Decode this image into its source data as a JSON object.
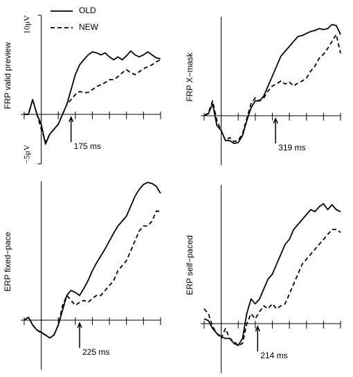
{
  "chart_data": [
    {
      "type": "line",
      "y_label": "FRP valid preview",
      "legend": "upper left",
      "x": [
        -100,
        -75,
        -50,
        -25,
        0,
        25,
        50,
        75,
        100,
        125,
        150,
        175,
        200,
        225,
        250,
        275,
        300,
        325,
        350,
        375,
        400,
        425,
        450,
        475,
        500,
        525,
        550,
        575,
        600,
        625,
        650,
        675,
        700
      ],
      "xlim": [
        -120,
        700
      ],
      "xticks": [
        -100,
        0,
        100,
        200,
        300,
        400,
        500,
        600,
        700
      ],
      "ylim": [
        -5,
        10
      ],
      "yticks": [
        {
          "value": 10,
          "label": "10μV"
        },
        {
          "value": -5,
          "label": "−5μV"
        }
      ],
      "series": [
        {
          "name": "OLD",
          "color": "#000000",
          "line_style": "solid",
          "values": [
            0,
            0,
            1.5,
            0,
            -1,
            -3,
            -2,
            -1.5,
            -1,
            0,
            1,
            2.5,
            4,
            5,
            5.5,
            6,
            6.3,
            6.2,
            6,
            6.2,
            5.8,
            5.5,
            5.8,
            5.5,
            5.9,
            6.4,
            6,
            5.8,
            6,
            6.3,
            6,
            5.7,
            5.6
          ]
        },
        {
          "name": "NEW",
          "color": "#000000",
          "line_style": "dashed",
          "values": [
            0,
            0,
            1.5,
            0,
            -1.5,
            -2.8,
            -2,
            -1.5,
            -1,
            0,
            1,
            1.5,
            2,
            2.3,
            2.2,
            2.2,
            2.5,
            2.8,
            3,
            3.2,
            3.5,
            3.5,
            3.8,
            4.2,
            4.5,
            4.2,
            4,
            4.3,
            4.6,
            4.8,
            5,
            5.3,
            5.5
          ]
        }
      ],
      "annotations": [
        {
          "text": "175 ms",
          "x": 175
        }
      ]
    },
    {
      "type": "line",
      "y_label": "FRP X−mask",
      "x": [
        -100,
        -75,
        -50,
        -25,
        0,
        25,
        50,
        75,
        100,
        125,
        150,
        175,
        200,
        225,
        250,
        275,
        300,
        325,
        350,
        375,
        400,
        425,
        450,
        475,
        500,
        525,
        550,
        575,
        600,
        625,
        650,
        675,
        700
      ],
      "xlim": [
        -120,
        700
      ],
      "xticks": [
        -100,
        0,
        100,
        200,
        300,
        400,
        500,
        600,
        700
      ],
      "ylim": [
        -5,
        10
      ],
      "series": [
        {
          "name": "OLD",
          "color": "#000000",
          "line_style": "solid",
          "values": [
            0,
            0.2,
            1.2,
            -1,
            -1.5,
            -2.5,
            -2.5,
            -2.8,
            -2.7,
            -2,
            -0.5,
            0.8,
            1.5,
            1.5,
            2,
            3,
            4,
            5,
            6,
            6.5,
            7,
            7.5,
            8,
            8.1,
            8.3,
            8.5,
            8.6,
            8.8,
            8.7,
            8.8,
            9.2,
            9.1,
            8.2
          ]
        },
        {
          "name": "NEW",
          "color": "#000000",
          "line_style": "dashed",
          "values": [
            0,
            0.3,
            1.5,
            -0.5,
            -1.5,
            -2.5,
            -2.2,
            -2.6,
            -2.5,
            -1.8,
            -0.3,
            1.2,
            1.8,
            1.5,
            1.8,
            2.5,
            3,
            3.2,
            3.5,
            3.2,
            3.4,
            3,
            3.3,
            3.5,
            3.8,
            4.5,
            5,
            5.8,
            6.2,
            6.8,
            7.5,
            8.2,
            6.3
          ]
        }
      ],
      "annotations": [
        {
          "text": "319 ms",
          "x": 319
        }
      ]
    },
    {
      "type": "line",
      "y_label": "ERP fixed−pace",
      "x": [
        -100,
        -75,
        -50,
        -25,
        0,
        25,
        50,
        75,
        100,
        125,
        150,
        175,
        200,
        225,
        250,
        275,
        300,
        325,
        350,
        375,
        400,
        425,
        450,
        475,
        500,
        525,
        550,
        575,
        600,
        625,
        650,
        675,
        700
      ],
      "xlim": [
        -120,
        700
      ],
      "xticks": [
        -100,
        0,
        100,
        200,
        300,
        400,
        500,
        600,
        700
      ],
      "ylim": [
        -5,
        14
      ],
      "series": [
        {
          "name": "OLD",
          "color": "#000000",
          "line_style": "solid",
          "values": [
            0,
            0.3,
            -0.5,
            -1,
            -1.2,
            -1.5,
            -1.8,
            -1.5,
            -0.5,
            1,
            2.5,
            3,
            2.8,
            2.5,
            3.2,
            4,
            5,
            5.8,
            6.5,
            7.2,
            8,
            8.8,
            9.5,
            10,
            10.5,
            11.5,
            12.5,
            13.2,
            13.7,
            13.9,
            13.8,
            13.5,
            12.8
          ]
        },
        {
          "name": "NEW",
          "color": "#000000",
          "line_style": "dashed",
          "values": [
            0,
            0.3,
            -0.5,
            -1,
            -1.3,
            -1.5,
            -1.8,
            -1.5,
            -0.5,
            1.5,
            2.5,
            2,
            1.5,
            1.8,
            2,
            1.8,
            2.2,
            2.5,
            2.5,
            3,
            3.5,
            4,
            5,
            5.5,
            6,
            7,
            8,
            9,
            9.5,
            9.5,
            10,
            11,
            11
          ]
        }
      ],
      "annotations": [
        {
          "text": "225 ms",
          "x": 225
        }
      ]
    },
    {
      "type": "line",
      "y_label": "ERP self−paced",
      "x": [
        -100,
        -75,
        -50,
        -25,
        0,
        25,
        50,
        75,
        100,
        125,
        150,
        175,
        200,
        225,
        250,
        275,
        300,
        325,
        350,
        375,
        400,
        425,
        450,
        475,
        500,
        525,
        550,
        575,
        600,
        625,
        650,
        675,
        700
      ],
      "xlim": [
        -120,
        700
      ],
      "xticks": [
        -100,
        0,
        100,
        200,
        300,
        400,
        500,
        600,
        700
      ],
      "ylim": [
        -5,
        14
      ],
      "series": [
        {
          "name": "OLD",
          "color": "#000000",
          "line_style": "solid",
          "values": [
            0.5,
            0.3,
            -0.5,
            -1,
            -1.3,
            -1.5,
            -1.5,
            -2,
            -2.2,
            -1.5,
            1,
            2.5,
            2,
            2.5,
            3.5,
            4.5,
            5,
            6,
            7,
            8,
            8.5,
            9.5,
            10,
            10.5,
            11,
            11.5,
            11.3,
            11.8,
            12.1,
            11.5,
            12,
            11.5,
            11.3
          ]
        },
        {
          "name": "NEW",
          "color": "#000000",
          "line_style": "dashed",
          "values": [
            1.5,
            1,
            -0.3,
            -1,
            -1.5,
            -0.5,
            -1.5,
            -1.8,
            -2.2,
            -2,
            0,
            1,
            0.5,
            1.2,
            1.8,
            1.5,
            2,
            1.5,
            1.8,
            2,
            3,
            4,
            5,
            6,
            6.5,
            7,
            7.5,
            8,
            8.5,
            9,
            9.5,
            9.5,
            9.2
          ]
        }
      ],
      "annotations": [
        {
          "text": "214 ms",
          "x": 214
        }
      ]
    }
  ]
}
